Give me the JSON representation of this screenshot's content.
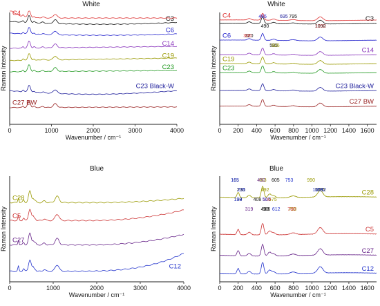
{
  "chart_data": [
    {
      "type": "line",
      "title": "White",
      "xlabel": "Wavenumber / cm⁻¹",
      "ylabel": "Raman Intensity",
      "xlim": [
        0,
        4000
      ],
      "xticks": [
        "0",
        "1000",
        "2000",
        "3000",
        "4000"
      ],
      "series": [
        {
          "name": "C3",
          "color": "#111111",
          "base": 0.9,
          "bg": "bowl",
          "bgamp": 0.25
        },
        {
          "name": "C6",
          "color": "#2222cc",
          "base": 0.8,
          "bg": "bowl",
          "bgamp": 0.18
        },
        {
          "name": "C14",
          "color": "#8833bb",
          "base": 0.68,
          "bg": "rise",
          "bgamp": 0.06
        },
        {
          "name": "C19",
          "color": "#999900",
          "base": 0.57,
          "bg": "rise",
          "bgamp": 0.08
        },
        {
          "name": "C23",
          "color": "#229922",
          "base": 0.47,
          "bg": "rise",
          "bgamp": 0.04
        },
        {
          "name": "C23 Black-W",
          "color": "#1a1a99",
          "base": 0.3,
          "bg": "dip",
          "bgamp": 0.35
        },
        {
          "name": "C27 BW",
          "color": "#992222",
          "base": 0.15,
          "bg": "rise",
          "bgamp": 0.02
        },
        {
          "name": "C4",
          "color": "#dd3333",
          "base": 0.95,
          "bg": "fall",
          "bgamp": 0.6
        }
      ],
      "peaks": [
        465,
        1090
      ]
    },
    {
      "type": "line",
      "title": "White",
      "xlabel": "Wavenumber / cm⁻¹",
      "ylabel": "Raman Intensity",
      "xlim": [
        0,
        1700
      ],
      "xticks": [
        "0",
        "200",
        "400",
        "600",
        "800",
        "1000",
        "1200",
        "1400",
        "1600"
      ],
      "series": [
        {
          "name": "C3",
          "color": "#111111",
          "base": 0.9
        },
        {
          "name": "C4",
          "color": "#dd3333",
          "base": 0.93
        },
        {
          "name": "C6",
          "color": "#2222cc",
          "base": 0.75
        },
        {
          "name": "C14",
          "color": "#8833bb",
          "base": 0.62
        },
        {
          "name": "C19",
          "color": "#999900",
          "base": 0.54
        },
        {
          "name": "C23",
          "color": "#229922",
          "base": 0.46
        },
        {
          "name": "C23 Black-W",
          "color": "#1a1a99",
          "base": 0.3
        },
        {
          "name": "C27 BW",
          "color": "#992222",
          "base": 0.16
        }
      ],
      "annotations": [
        {
          "text": "465",
          "x": 465,
          "color": "#2222cc"
        },
        {
          "text": "490",
          "x": 490,
          "color": "#111111"
        },
        {
          "text": "320",
          "x": 320,
          "color": "#111111"
        },
        {
          "text": "585",
          "x": 585,
          "color": "#111111"
        },
        {
          "text": "795",
          "x": 795,
          "color": "#111111"
        },
        {
          "text": "1090",
          "x": 1090,
          "color": "#111111"
        },
        {
          "text": "300",
          "x": 300,
          "color": "#dd3333"
        },
        {
          "text": "605",
          "x": 605,
          "color": "#999900"
        },
        {
          "text": "695",
          "x": 695,
          "color": "#1a1a99"
        },
        {
          "text": "1092",
          "x": 1092,
          "color": "#992222"
        }
      ]
    },
    {
      "type": "line",
      "title": "Blue",
      "xlabel": "Wavenumber / cm⁻¹",
      "ylabel": "Raman Intensity",
      "xlim": [
        0,
        4000
      ],
      "xticks": [
        "0",
        "1000",
        "2000",
        "3000",
        "4000"
      ],
      "series": [
        {
          "name": "C28",
          "color": "#999900",
          "base": 0.75
        },
        {
          "name": "C5",
          "color": "#cc3333",
          "base": 0.58
        },
        {
          "name": "C27",
          "color": "#662288",
          "base": 0.35
        },
        {
          "name": "C12",
          "color": "#2233cc",
          "base": 0.1
        }
      ]
    },
    {
      "type": "line",
      "title": "Blue",
      "xlabel": "Wavenumber / cm⁻¹",
      "ylabel": "Raman Intensity",
      "xlim": [
        0,
        1700
      ],
      "xticks": [
        "0",
        "200",
        "400",
        "600",
        "800",
        "1000",
        "1200",
        "1400",
        "1600"
      ],
      "series": [
        {
          "name": "C28",
          "color": "#999900",
          "base": 0.8
        },
        {
          "name": "C5",
          "color": "#cc3333",
          "base": 0.45
        },
        {
          "name": "C27",
          "color": "#662288",
          "base": 0.25
        },
        {
          "name": "C12",
          "color": "#2233cc",
          "base": 0.08
        }
      ],
      "annotations": [
        {
          "text": "463",
          "x": 463,
          "color": "#999900"
        },
        {
          "text": "492",
          "x": 492,
          "color": "#999900"
        },
        {
          "text": "575",
          "x": 575,
          "color": "#999900"
        },
        {
          "text": "790",
          "x": 790,
          "color": "#999900"
        },
        {
          "text": "990",
          "x": 990,
          "color": "#999900"
        },
        {
          "text": "1085",
          "x": 1085,
          "color": "#999900"
        },
        {
          "text": "198",
          "x": 198,
          "color": "#111111"
        },
        {
          "text": "490",
          "x": 490,
          "color": "#111111"
        },
        {
          "text": "165",
          "x": 165,
          "color": "#111111"
        },
        {
          "text": "230",
          "x": 230,
          "color": "#111111"
        },
        {
          "text": "408",
          "x": 408,
          "color": "#111111"
        },
        {
          "text": "505",
          "x": 505,
          "color": "#111111"
        },
        {
          "text": "605",
          "x": 605,
          "color": "#111111"
        },
        {
          "text": "1092",
          "x": 1092,
          "color": "#111111"
        },
        {
          "text": "510",
          "x": 510,
          "color": "#cc3333"
        },
        {
          "text": "780",
          "x": 780,
          "color": "#cc3333"
        },
        {
          "text": "450",
          "x": 450,
          "color": "#662288"
        },
        {
          "text": "1092",
          "x": 1092,
          "color": "#2233cc"
        },
        {
          "text": "199",
          "x": 199,
          "color": "#2233cc"
        },
        {
          "text": "319",
          "x": 319,
          "color": "#662288"
        },
        {
          "text": "165",
          "x": 165,
          "color": "#2233cc"
        },
        {
          "text": "235",
          "x": 235,
          "color": "#2233cc"
        },
        {
          "text": "507",
          "x": 507,
          "color": "#2233cc"
        },
        {
          "text": "612",
          "x": 612,
          "color": "#2233cc"
        },
        {
          "text": "753",
          "x": 753,
          "color": "#2233cc"
        },
        {
          "text": "1065",
          "x": 1065,
          "color": "#2233cc"
        }
      ]
    }
  ]
}
